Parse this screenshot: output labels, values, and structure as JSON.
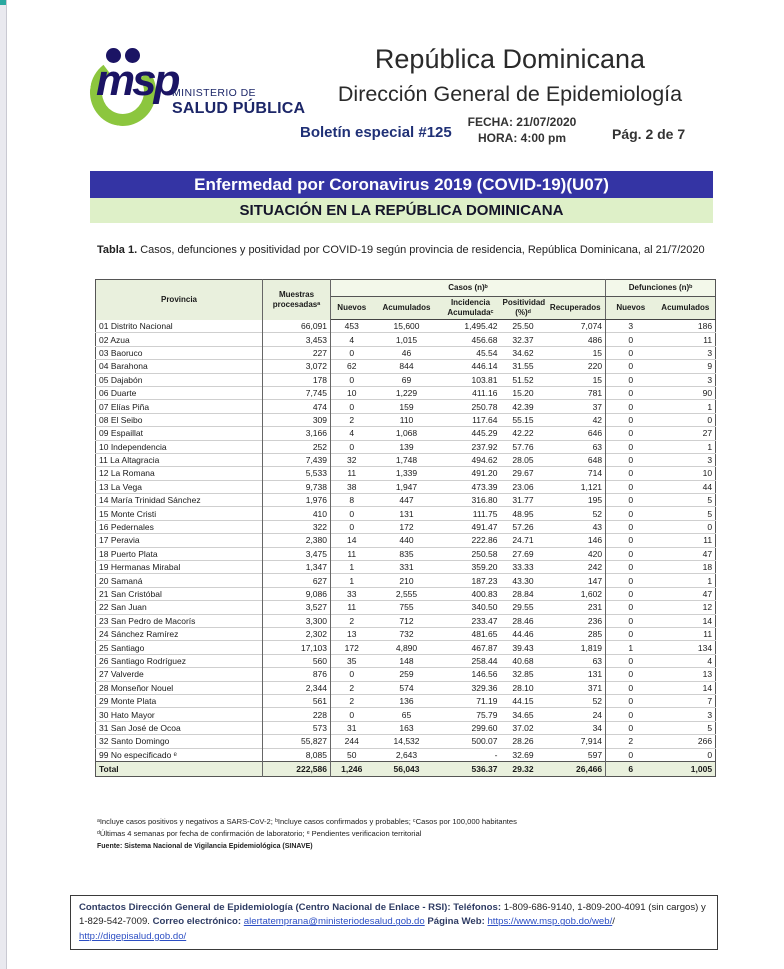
{
  "colors": {
    "accent_blue": "#3434a4",
    "banner_green": "#def0c8",
    "header_green": "#e9f0dd",
    "navy": "#1f3076",
    "logo_green": "#8cc63e",
    "logo_navy": "#1b1464",
    "link_blue": "#2d4fc4",
    "teal_artifact": "#2aa8a0"
  },
  "letterhead": {
    "logo_msp": "msp",
    "logo_line1": "MINISTERIO DE",
    "logo_line2": "SALUD PÚBLICA",
    "title1": "República Dominicana",
    "title2": "Dirección General de Epidemiología",
    "bulletin": "Boletín especial #125",
    "fecha": "FECHA: 21/07/2020",
    "hora": "HORA: 4:00 pm",
    "page": "Pág. 2 de 7"
  },
  "banners": {
    "banner1": "Enfermedad por Coronavirus 2019 (COVID-19)(U07)",
    "banner2": "SITUACIÓN EN LA REPÚBLICA DOMINICANA"
  },
  "caption": {
    "bold": "Tabla 1.",
    "rest": " Casos, defunciones y positividad por COVID-19 según provincia de residencia, República Dominicana, al 21/7/2020"
  },
  "table": {
    "headers": {
      "provincia": "Provincia",
      "muestras": "Muestras procesadasᵃ",
      "casos_group": "Casos (n)ᵇ",
      "defunciones_group": "Defunciones (n)ᵇ",
      "nuevos": "Nuevos",
      "acumulados": "Acumulados",
      "incidencia": "Incidencia Acumuladaᶜ",
      "positividad": "Positividad (%)ᵈ",
      "recuperados": "Recuperados",
      "def_nuevos": "Nuevos",
      "def_acumulados": "Acumulados"
    },
    "rows": [
      [
        "01 Distrito Nacional",
        "66,091",
        "453",
        "15,600",
        "1,495.42",
        "25.50",
        "7,074",
        "3",
        "186"
      ],
      [
        "02 Azua",
        "3,453",
        "4",
        "1,015",
        "456.68",
        "32.37",
        "486",
        "0",
        "11"
      ],
      [
        "03 Baoruco",
        "227",
        "0",
        "46",
        "45.54",
        "34.62",
        "15",
        "0",
        "3"
      ],
      [
        "04 Barahona",
        "3,072",
        "62",
        "844",
        "446.14",
        "31.55",
        "220",
        "0",
        "9"
      ],
      [
        "05 Dajabón",
        "178",
        "0",
        "69",
        "103.81",
        "51.52",
        "15",
        "0",
        "3"
      ],
      [
        "06 Duarte",
        "7,745",
        "10",
        "1,229",
        "411.16",
        "15.20",
        "781",
        "0",
        "90"
      ],
      [
        "07 Elías Piña",
        "474",
        "0",
        "159",
        "250.78",
        "42.39",
        "37",
        "0",
        "1"
      ],
      [
        "08 El Seibo",
        "309",
        "2",
        "110",
        "117.64",
        "55.15",
        "42",
        "0",
        "0"
      ],
      [
        "09 Espaillat",
        "3,166",
        "4",
        "1,068",
        "445.29",
        "42.22",
        "646",
        "0",
        "27"
      ],
      [
        "10 Independencia",
        "252",
        "0",
        "139",
        "237.92",
        "57.76",
        "63",
        "0",
        "1"
      ],
      [
        "11 La Altagracia",
        "7,439",
        "32",
        "1,748",
        "494.62",
        "28.05",
        "648",
        "0",
        "3"
      ],
      [
        "12 La Romana",
        "5,533",
        "11",
        "1,339",
        "491.20",
        "29.67",
        "714",
        "0",
        "10"
      ],
      [
        "13 La Vega",
        "9,738",
        "38",
        "1,947",
        "473.39",
        "23.06",
        "1,121",
        "0",
        "44"
      ],
      [
        "14 María Trinidad Sánchez",
        "1,976",
        "8",
        "447",
        "316.80",
        "31.77",
        "195",
        "0",
        "5"
      ],
      [
        "15 Monte Cristi",
        "410",
        "0",
        "131",
        "111.75",
        "48.95",
        "52",
        "0",
        "5"
      ],
      [
        "16 Pedernales",
        "322",
        "0",
        "172",
        "491.47",
        "57.26",
        "43",
        "0",
        "0"
      ],
      [
        "17 Peravia",
        "2,380",
        "14",
        "440",
        "222.86",
        "24.71",
        "146",
        "0",
        "11"
      ],
      [
        "18 Puerto Plata",
        "3,475",
        "11",
        "835",
        "250.58",
        "27.69",
        "420",
        "0",
        "47"
      ],
      [
        "19 Hermanas Mirabal",
        "1,347",
        "1",
        "331",
        "359.20",
        "33.33",
        "242",
        "0",
        "18"
      ],
      [
        "20 Samaná",
        "627",
        "1",
        "210",
        "187.23",
        "43.30",
        "147",
        "0",
        "1"
      ],
      [
        "21 San Cristóbal",
        "9,086",
        "33",
        "2,555",
        "400.83",
        "28.84",
        "1,602",
        "0",
        "47"
      ],
      [
        "22 San Juan",
        "3,527",
        "11",
        "755",
        "340.50",
        "29.55",
        "231",
        "0",
        "12"
      ],
      [
        "23 San Pedro de Macorís",
        "3,300",
        "2",
        "712",
        "233.47",
        "28.46",
        "236",
        "0",
        "14"
      ],
      [
        "24 Sánchez Ramírez",
        "2,302",
        "13",
        "732",
        "481.65",
        "44.46",
        "285",
        "0",
        "11"
      ],
      [
        "25 Santiago",
        "17,103",
        "172",
        "4,890",
        "467.87",
        "39.43",
        "1,819",
        "1",
        "134"
      ],
      [
        "26 Santiago Rodríguez",
        "560",
        "35",
        "148",
        "258.44",
        "40.68",
        "63",
        "0",
        "4"
      ],
      [
        "27 Valverde",
        "876",
        "0",
        "259",
        "146.56",
        "32.85",
        "131",
        "0",
        "13"
      ],
      [
        "28 Monseñor Nouel",
        "2,344",
        "2",
        "574",
        "329.36",
        "28.10",
        "371",
        "0",
        "14"
      ],
      [
        "29 Monte Plata",
        "561",
        "2",
        "136",
        "71.19",
        "44.15",
        "52",
        "0",
        "7"
      ],
      [
        "30 Hato Mayor",
        "228",
        "0",
        "65",
        "75.79",
        "34.65",
        "24",
        "0",
        "3"
      ],
      [
        "31 San José de Ocoa",
        "573",
        "31",
        "163",
        "299.60",
        "37.02",
        "34",
        "0",
        "5"
      ],
      [
        "32 Santo Domingo",
        "55,827",
        "244",
        "14,532",
        "500.07",
        "28.26",
        "7,914",
        "2",
        "266"
      ],
      [
        "99 No especificado ᵉ",
        "8,085",
        "50",
        "2,643",
        "-",
        "32.69",
        "597",
        "0",
        "0"
      ]
    ],
    "total": [
      "Total",
      "222,586",
      "1,246",
      "56,043",
      "536.37",
      "29.32",
      "26,466",
      "6",
      "1,005"
    ]
  },
  "footnotes": {
    "line1": "ᵃIncluye casos positivos y negativos a SARS-CoV-2; ᵇIncluye casos confirmados y probables; ᶜCasos por 100,000 habitantes",
    "line2": "ᵈÚltimas 4 semanas por fecha de confirmación de laboratorio; ᵉ Pendientes verificacion territorial",
    "fuente": "Fuente: Sistema Nacional de Vigilancia Epidemiológica (SINAVE)"
  },
  "contacts": {
    "lead": "Contactos Dirección General de Epidemiología (Centro Nacional de Enlace - RSI): ",
    "tel_label": "Teléfonos:",
    "tel_text": " 1-809-686-9140, 1-809-200-4091 (sin cargos) y 1-829-542-7009.  ",
    "email_label": "Correo electrónico: ",
    "email": "alertatemprana@ministeriodesalud.gob.do",
    "web_label": " Página Web: ",
    "web1": "https://www.msp.gob.do/web/",
    "web_sep": "/ ",
    "web2": "http://digepisalud.gob.do/"
  }
}
